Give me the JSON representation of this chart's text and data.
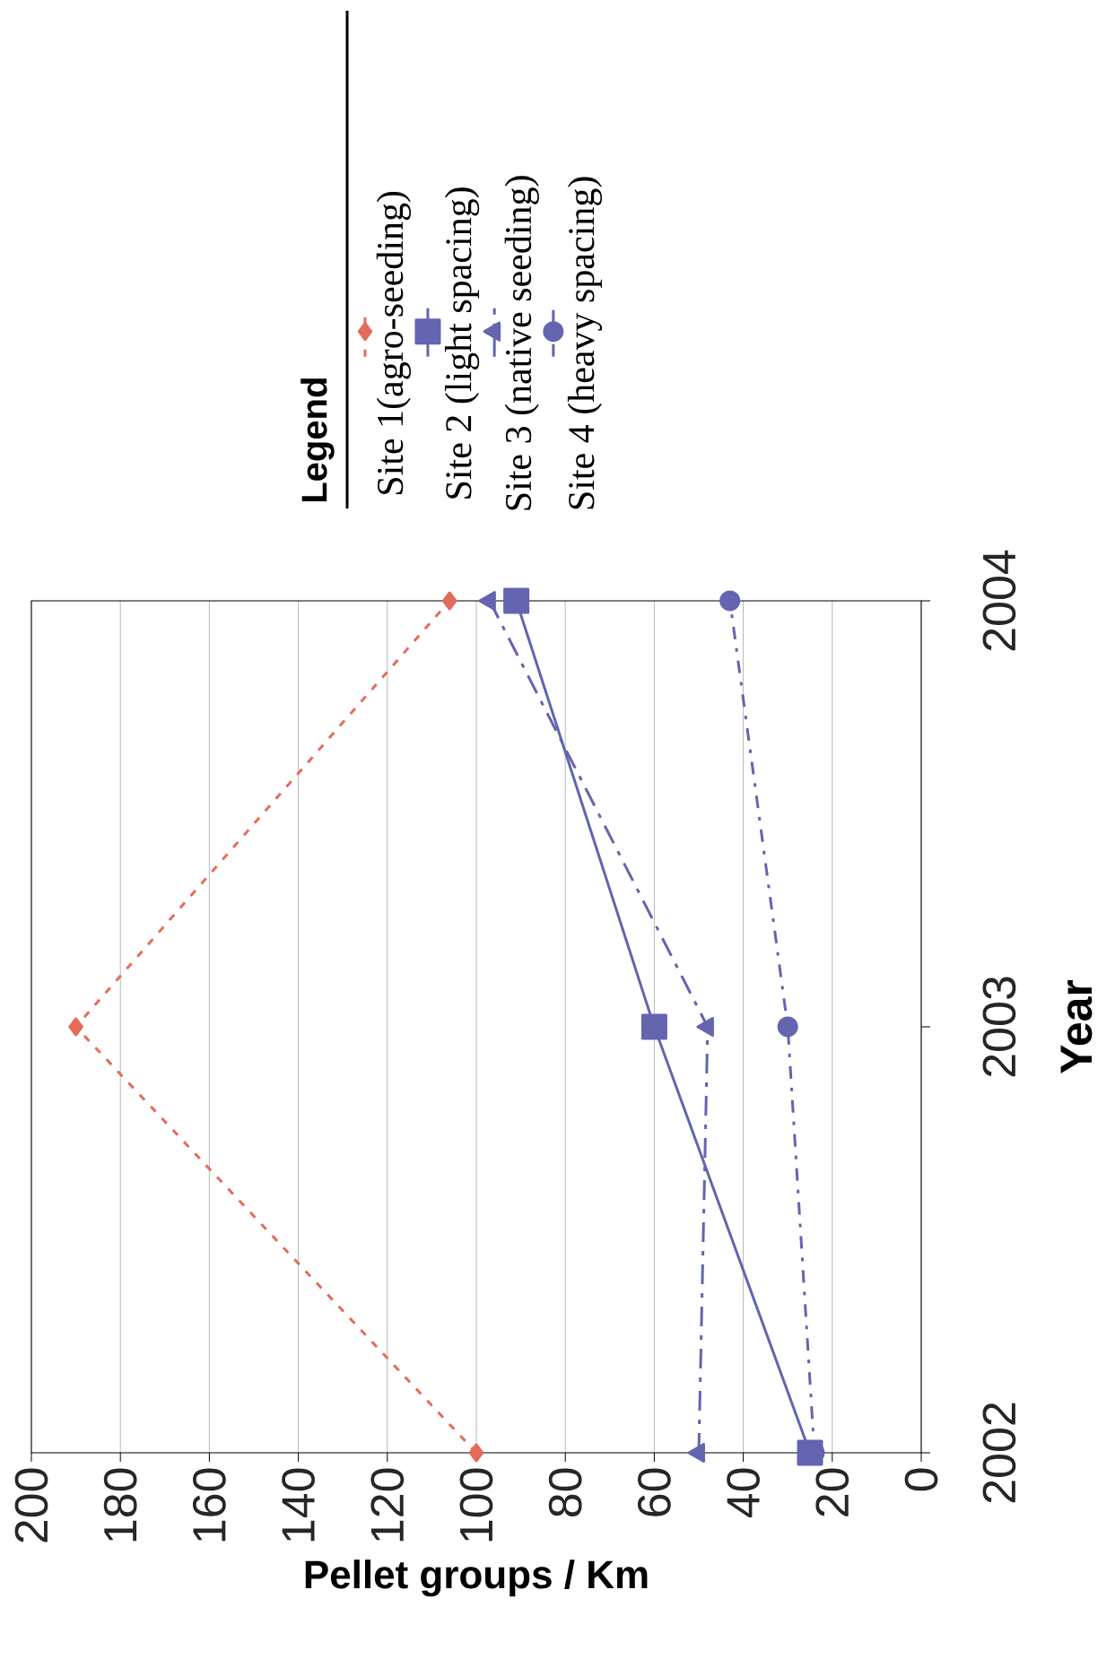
{
  "chart_data": {
    "type": "line",
    "xlabel": "Pellet groups / Km",
    "ylabel": "Year",
    "legend_title": "Legend",
    "series": [
      {
        "name": "Site 1(agro-seeding)",
        "color": "#e46c5a",
        "marker": "diamond",
        "line_style": "dotted",
        "x": [
          100,
          190,
          106
        ],
        "values": [
          2002,
          2003,
          2004
        ]
      },
      {
        "name": "Site 2 (light spacing)",
        "color": "#6464b0",
        "marker": "square",
        "line_style": "solid",
        "x": [
          25,
          60,
          91
        ],
        "values": [
          2002,
          2003,
          2004
        ]
      },
      {
        "name": "Site 3 (native seeding)",
        "color": "#6464b0",
        "marker": "triangle",
        "line_style": "dashed",
        "x": [
          50,
          48,
          97
        ],
        "values": [
          2002,
          2003,
          2004
        ]
      },
      {
        "name": "Site 4 (heavy spacing)",
        "color": "#6464b0",
        "marker": "circle",
        "line_style": "dashdot",
        "x": [
          24,
          30,
          43
        ],
        "values": [
          2002,
          2003,
          2004
        ]
      }
    ],
    "xlim": [
      200,
      0
    ],
    "xticks": [
      200,
      180,
      160,
      140,
      120,
      100,
      80,
      60,
      40,
      20,
      0
    ],
    "ylim": [
      2002,
      2004
    ],
    "yticks": [
      2002,
      2003,
      2004
    ],
    "grid": "x",
    "legend": "top"
  }
}
